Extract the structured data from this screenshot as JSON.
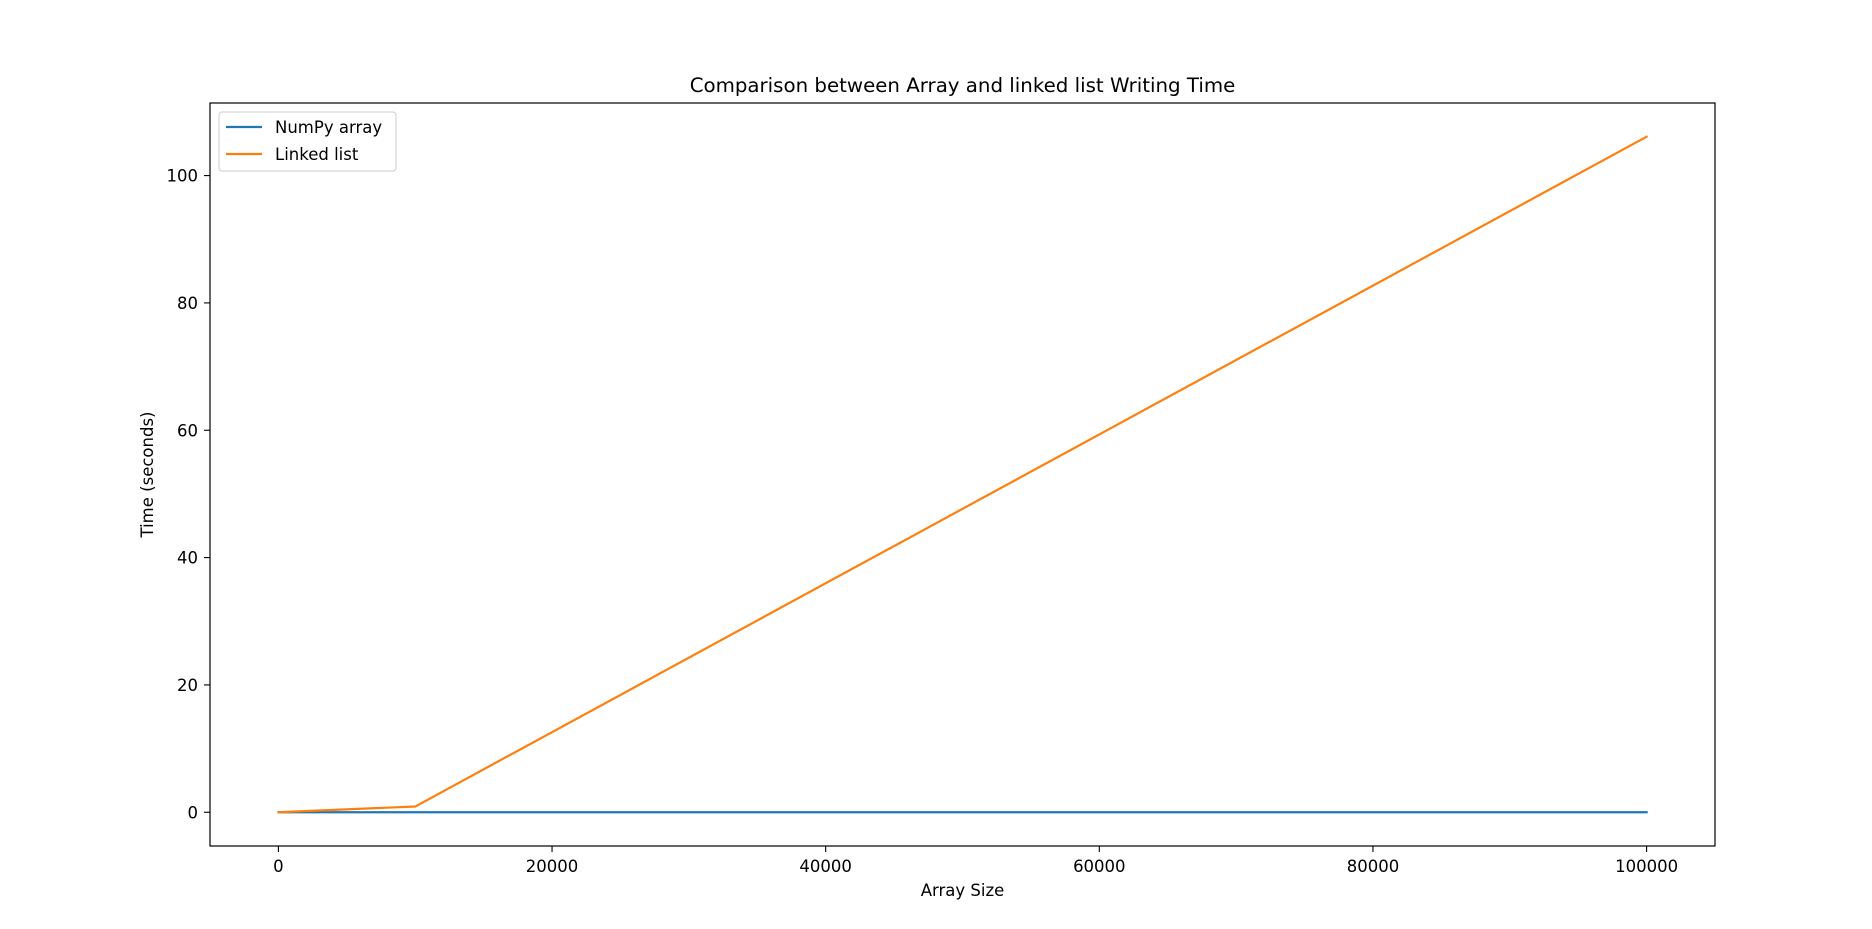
{
  "chart_data": {
    "type": "line",
    "title": "Comparison between Array and linked list Writing Time",
    "xlabel": "Array Size",
    "ylabel": "Time (seconds)",
    "xlim": [
      -5000,
      105000
    ],
    "ylim": [
      -5.3,
      111.4
    ],
    "xticks": [
      0,
      20000,
      40000,
      60000,
      80000,
      100000
    ],
    "yticks": [
      0,
      20,
      40,
      60,
      80,
      100
    ],
    "grid": false,
    "legend_position": "upper-left",
    "series": [
      {
        "name": "NumPy array",
        "color": "#1f77b4",
        "x": [
          10,
          100,
          1000,
          10000,
          100000
        ],
        "y": [
          0.0,
          0.0,
          0.0,
          0.0,
          0.0
        ]
      },
      {
        "name": "Linked list",
        "color": "#ff7f0e",
        "x": [
          10,
          100,
          1000,
          10000,
          100000
        ],
        "y": [
          0.0,
          0.0,
          0.1,
          0.9,
          106.1
        ]
      }
    ]
  }
}
